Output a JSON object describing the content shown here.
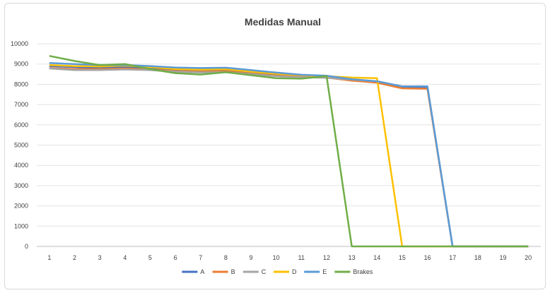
{
  "chart_data": {
    "type": "line",
    "title": "Medidas Manual",
    "xlabel": "",
    "ylabel": "",
    "categories": [
      "1",
      "2",
      "3",
      "4",
      "5",
      "6",
      "7",
      "8",
      "9",
      "10",
      "11",
      "12",
      "13",
      "14",
      "15",
      "16",
      "17",
      "18",
      "19",
      "20"
    ],
    "ylim": [
      0,
      10000
    ],
    "yticks": [
      "0",
      "1000",
      "2000",
      "3000",
      "4000",
      "5000",
      "6000",
      "7000",
      "8000",
      "9000",
      "10000"
    ],
    "grid": true,
    "legend": "bottom",
    "series": [
      {
        "name": "A",
        "color": "#4472C4",
        "values": [
          8900,
          8850,
          8800,
          8850,
          8800,
          8720,
          8700,
          8720,
          8600,
          8480,
          8400,
          8380,
          8200,
          8100,
          7850,
          7820,
          0,
          0,
          0,
          0
        ]
      },
      {
        "name": "B",
        "color": "#ED7D31",
        "values": [
          8800,
          8750,
          8750,
          8780,
          8730,
          8650,
          8620,
          8650,
          8520,
          8420,
          8370,
          8330,
          8180,
          8080,
          7800,
          7780,
          0,
          0,
          0,
          0
        ]
      },
      {
        "name": "C",
        "color": "#A5A5A5",
        "values": [
          8780,
          8700,
          8700,
          8730,
          8700,
          8620,
          8580,
          8600,
          8500,
          8400,
          8350,
          8320,
          8230,
          8150,
          7900,
          7900,
          0,
          0,
          0,
          0
        ]
      },
      {
        "name": "D",
        "color": "#FFC000",
        "values": [
          8950,
          8900,
          8880,
          8920,
          8850,
          8750,
          8720,
          8750,
          8620,
          8520,
          8450,
          8400,
          8330,
          8300,
          0,
          0,
          0,
          0,
          0,
          0
        ]
      },
      {
        "name": "E",
        "color": "#5B9BD5",
        "values": [
          9050,
          9000,
          8950,
          8950,
          8900,
          8830,
          8800,
          8820,
          8700,
          8580,
          8470,
          8420,
          8250,
          8150,
          7900,
          7900,
          0,
          0,
          0,
          0
        ]
      },
      {
        "name": "Brakes",
        "color": "#70AD47",
        "values": [
          9400,
          9150,
          8950,
          9000,
          8750,
          8550,
          8480,
          8600,
          8450,
          8300,
          8280,
          8400,
          0,
          0,
          0,
          0,
          0,
          0,
          0,
          0
        ]
      }
    ]
  }
}
